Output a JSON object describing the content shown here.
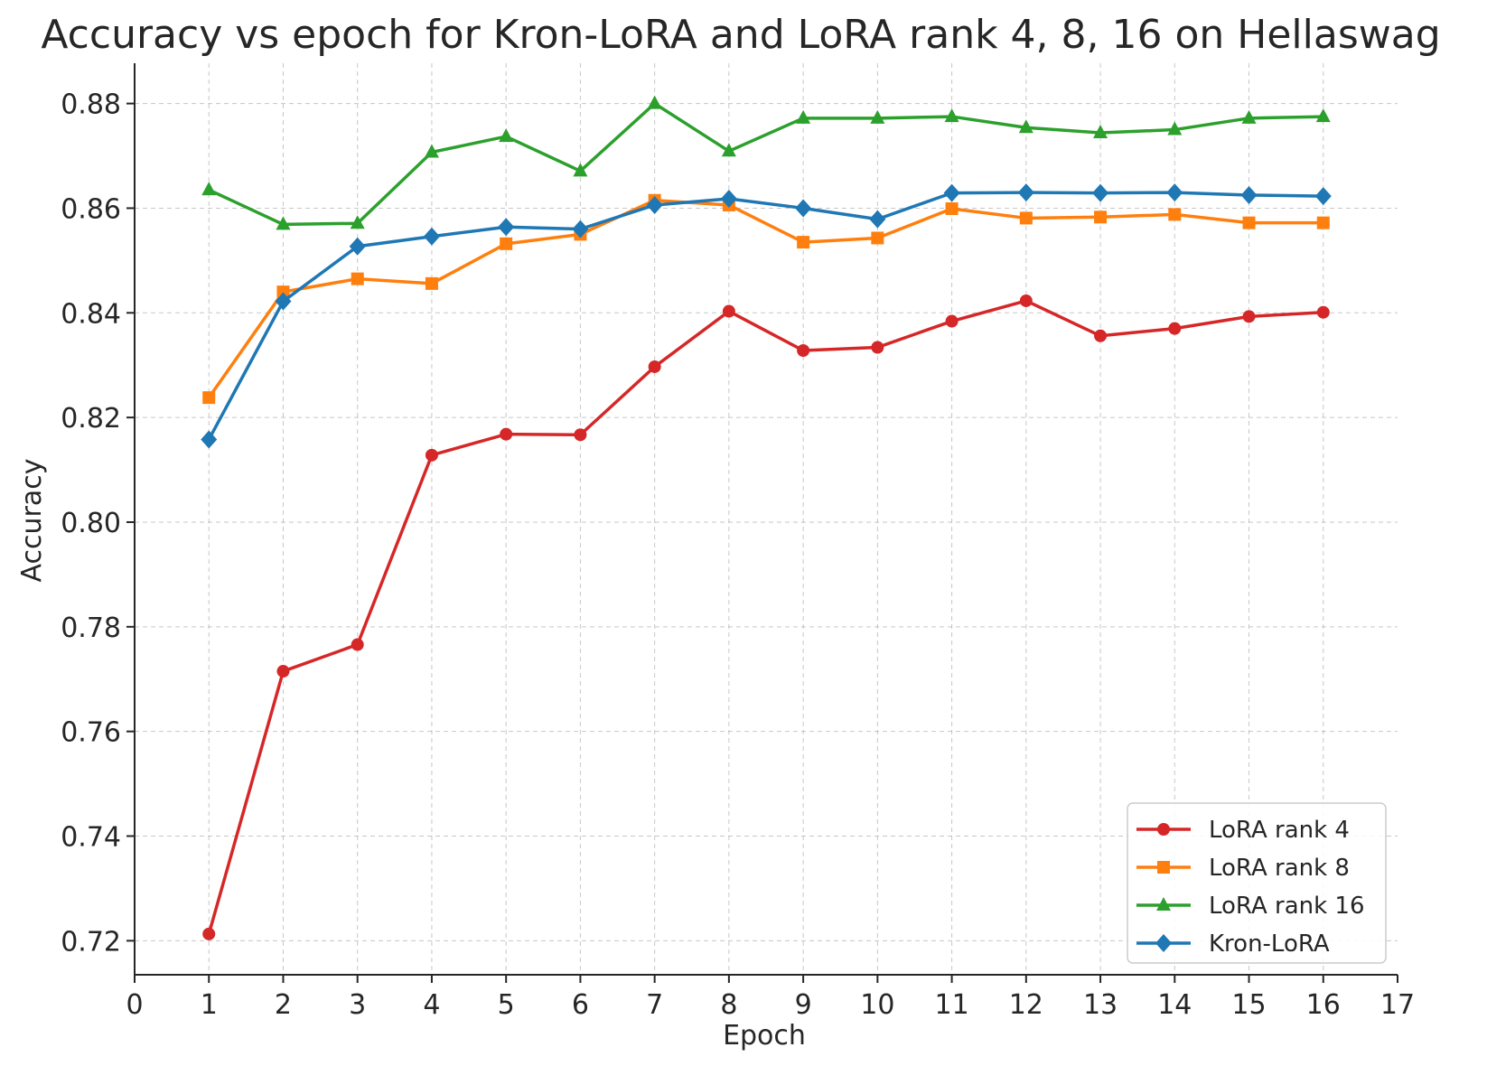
{
  "chart_data": {
    "type": "line",
    "title": "Accuracy vs epoch for Kron-LoRA and LoRA rank 4, 8, 16 on Hellaswag",
    "xlabel": "Epoch",
    "ylabel": "Accuracy",
    "xlim": [
      0,
      17
    ],
    "ylim": [
      0.7135,
      0.8877
    ],
    "x_ticks": [
      "0",
      "1",
      "2",
      "3",
      "4",
      "5",
      "6",
      "7",
      "8",
      "9",
      "10",
      "11",
      "12",
      "13",
      "14",
      "15",
      "16",
      "17"
    ],
    "y_ticks": [
      "0.72",
      "0.74",
      "0.76",
      "0.78",
      "0.80",
      "0.82",
      "0.84",
      "0.86",
      "0.88"
    ],
    "grid": true,
    "legend_position": "bottom-right",
    "x": [
      1,
      2,
      3,
      4,
      5,
      6,
      7,
      8,
      9,
      10,
      11,
      12,
      13,
      14,
      15,
      16
    ],
    "series": [
      {
        "name": "LoRA rank 4",
        "color": "#d62728",
        "marker": "circle",
        "values": [
          0.7213,
          0.7715,
          0.7766,
          0.8128,
          0.8168,
          0.8167,
          0.8297,
          0.8403,
          0.8328,
          0.8334,
          0.8384,
          0.8423,
          0.8356,
          0.837,
          0.8393,
          0.8401
        ]
      },
      {
        "name": "LoRA rank 8",
        "color": "#ff7f0e",
        "marker": "square",
        "values": [
          0.8238,
          0.844,
          0.8465,
          0.8456,
          0.8532,
          0.855,
          0.8615,
          0.8606,
          0.8535,
          0.8543,
          0.8599,
          0.8581,
          0.8583,
          0.8588,
          0.8572,
          0.8572
        ]
      },
      {
        "name": "LoRA rank 16",
        "color": "#2ca02c",
        "marker": "triangle",
        "values": [
          0.8635,
          0.8569,
          0.8571,
          0.8707,
          0.8737,
          0.8671,
          0.88,
          0.8709,
          0.8772,
          0.8772,
          0.8775,
          0.8754,
          0.8744,
          0.875,
          0.8772,
          0.8775
        ]
      },
      {
        "name": "Kron-LoRA",
        "color": "#1f77b4",
        "marker": "diamond",
        "values": [
          0.8158,
          0.8422,
          0.8527,
          0.8546,
          0.8564,
          0.856,
          0.8606,
          0.8618,
          0.86,
          0.8579,
          0.8629,
          0.863,
          0.8629,
          0.863,
          0.8625,
          0.8623
        ]
      }
    ]
  }
}
